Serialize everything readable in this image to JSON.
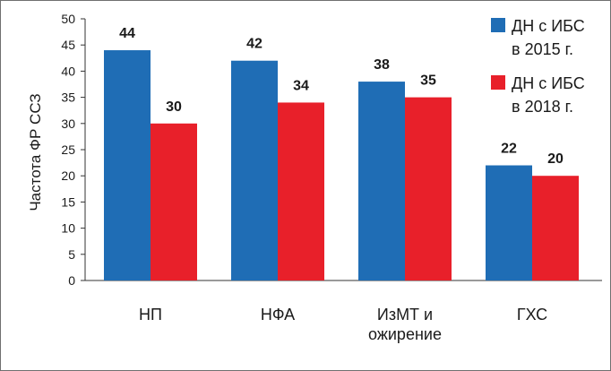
{
  "chart_data": {
    "type": "bar",
    "title": "",
    "xlabel": "",
    "ylabel": "Частота ФР ССЗ",
    "ylim": [
      0,
      50
    ],
    "yticks": [
      0,
      5,
      10,
      15,
      20,
      25,
      30,
      35,
      40,
      45,
      50
    ],
    "grid": false,
    "legend_position": "top-right",
    "categories": [
      [
        "НП"
      ],
      [
        "НФА"
      ],
      [
        "ИзМТ и",
        "ожирение"
      ],
      [
        "ГХС"
      ]
    ],
    "series": [
      {
        "name_lines": [
          "ДН с ИБС",
          "в 2015 г."
        ],
        "color": "#1f6db5",
        "values": [
          44,
          42,
          38,
          22
        ]
      },
      {
        "name_lines": [
          "ДН с ИБС",
          "в 2018 г."
        ],
        "color": "#e8202a",
        "values": [
          30,
          34,
          35,
          20
        ]
      }
    ]
  }
}
